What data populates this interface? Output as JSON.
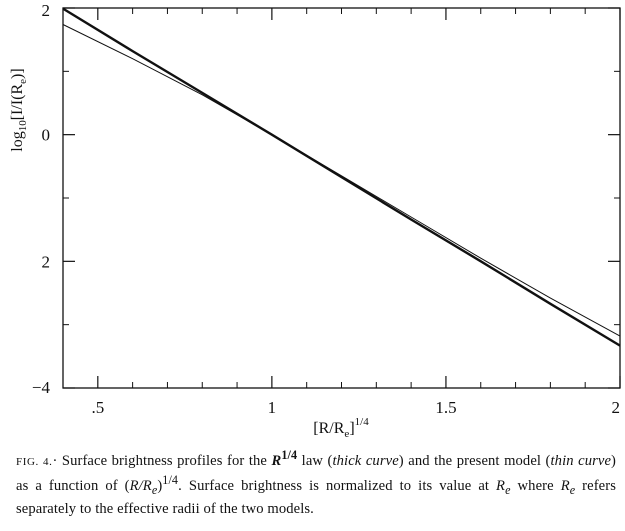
{
  "chart_data": {
    "type": "line",
    "xlabel": "[R/Re]1/4",
    "ylabel": "log10[I/I(Re)]",
    "xlim": [
      0.4,
      2.0
    ],
    "ylim": [
      -4,
      2
    ],
    "x_ticks": [
      {
        "value": 0.5,
        "label": ".5"
      },
      {
        "value": 1.0,
        "label": "1"
      },
      {
        "value": 1.5,
        "label": "1.5"
      },
      {
        "value": 2.0,
        "label": "2"
      }
    ],
    "y_ticks": [
      {
        "value": 2,
        "label": "2"
      },
      {
        "value": 0,
        "label": "0"
      },
      {
        "value": -2,
        "label": "2"
      },
      {
        "value": -4,
        "label": "−4"
      }
    ],
    "minor_x_ticks": [
      0.6,
      0.7,
      0.8,
      0.9,
      1.1,
      1.2,
      1.3,
      1.4,
      1.6,
      1.7,
      1.8,
      1.9
    ],
    "minor_y_ticks": [
      1,
      -1,
      -3
    ],
    "grid": false,
    "series": [
      {
        "style": "thick",
        "x": [
          0.4,
          0.6,
          0.8,
          1.0,
          1.2,
          1.4,
          1.6,
          1.8,
          2.0
        ],
        "y": [
          1.99,
          1.32,
          0.66,
          0.0,
          -0.67,
          -1.34,
          -2.0,
          -2.67,
          -3.33
        ]
      },
      {
        "style": "thin",
        "x": [
          0.4,
          0.6,
          0.8,
          1.0,
          1.2,
          1.4,
          1.6,
          1.8,
          2.0
        ],
        "y": [
          1.74,
          1.2,
          0.63,
          0.0,
          -0.65,
          -1.3,
          -1.95,
          -2.58,
          -3.18
        ]
      }
    ]
  },
  "caption": {
    "fig_label": "FIG. 4.",
    "p1": "· Surface brightness profiles for the ",
    "law": "R",
    "law_exp": "1/4",
    "p2": " law (",
    "thick_label": "thick curve",
    "p3": ") and the present model (",
    "thin_label": "thin curve",
    "p4": ") as a function of (",
    "ratio": "R/R",
    "ratio_sub": "e",
    "p5": ")",
    "ratio_exp": "1/4",
    "p6": ". Surface brightness is normalized to its value at ",
    "re1": "R",
    "re1_sub": "e",
    "p7": " where ",
    "re2": "R",
    "re2_sub": "e",
    "p8": " refers separately to the effective radii of the two models."
  }
}
